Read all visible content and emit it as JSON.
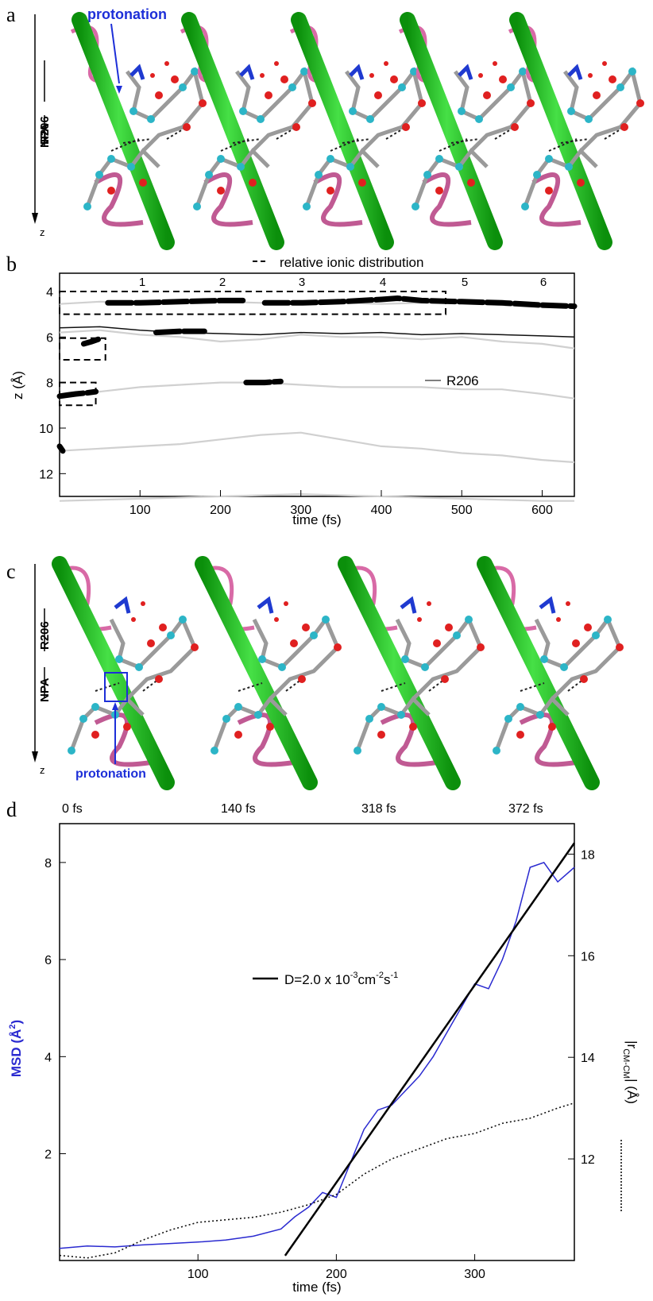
{
  "panel_a": {
    "letter": "a",
    "annotation": "protonation",
    "labels": [
      "R206",
      "NPA"
    ],
    "axis": "z",
    "frame_count": 5
  },
  "panel_b": {
    "letter": "b",
    "legend_dashed": "relative ionic distribution",
    "legend_solid": "R206",
    "chart_data": {
      "type": "line",
      "xlabel": "time (fs)",
      "ylabel": "z (Å)",
      "xlim": [
        0,
        640
      ],
      "ylim": [
        13,
        3.2
      ],
      "xticks": [
        100,
        200,
        300,
        400,
        500,
        600
      ],
      "yticks": [
        4,
        6,
        8,
        10,
        12
      ],
      "top_markers": [
        "1",
        "2",
        "3",
        "4",
        "5",
        "6"
      ],
      "top_marker_x": [
        57,
        123,
        264,
        293,
        435,
        611
      ],
      "series": [
        {
          "name": "R206",
          "style": "black",
          "x": [
            0,
            50,
            100,
            150,
            200,
            250,
            300,
            350,
            400,
            450,
            500,
            550,
            600,
            640
          ],
          "y": [
            5.6,
            5.55,
            5.7,
            5.8,
            5.85,
            5.9,
            5.8,
            5.85,
            5.8,
            5.9,
            5.85,
            5.9,
            5.95,
            6.0
          ]
        },
        {
          "style": "gray",
          "x": [
            0,
            50,
            100,
            150,
            200,
            250,
            300,
            350,
            400,
            450,
            500,
            550,
            600,
            640
          ],
          "y": [
            4.55,
            4.45,
            4.5,
            4.5,
            4.45,
            4.5,
            4.55,
            4.5,
            4.55,
            4.5,
            4.5,
            4.6,
            4.7,
            4.7
          ]
        },
        {
          "style": "gray",
          "x": [
            0,
            50,
            100,
            150,
            200,
            250,
            300,
            350,
            400,
            450,
            500,
            550,
            600,
            640
          ],
          "y": [
            5.8,
            5.7,
            5.9,
            6.0,
            6.2,
            6.1,
            5.9,
            6.0,
            6.0,
            6.1,
            6.0,
            6.2,
            6.3,
            6.5
          ]
        },
        {
          "style": "gray",
          "x": [
            0,
            50,
            100,
            150,
            200,
            250,
            300,
            350,
            400,
            450,
            500,
            550,
            600,
            640
          ],
          "y": [
            8.6,
            8.4,
            8.2,
            8.1,
            8.0,
            8.0,
            8.1,
            8.2,
            8.2,
            8.2,
            8.3,
            8.3,
            8.5,
            8.7
          ]
        },
        {
          "style": "gray",
          "x": [
            0,
            50,
            100,
            150,
            200,
            250,
            300,
            350,
            400,
            450,
            500,
            550,
            600,
            640
          ],
          "y": [
            11.0,
            10.9,
            10.8,
            10.7,
            10.5,
            10.3,
            10.2,
            10.5,
            10.8,
            10.9,
            11.1,
            11.2,
            11.4,
            11.5
          ]
        },
        {
          "style": "gray",
          "x": [
            0,
            100,
            200,
            300,
            400,
            500,
            600,
            640
          ],
          "y": [
            13.2,
            13.1,
            13.0,
            12.9,
            13.0,
            13.1,
            13.2,
            13.2
          ]
        }
      ],
      "thick_segments": [
        {
          "x": [
            0,
            10,
            20,
            35,
            45
          ],
          "y": [
            8.6,
            8.55,
            8.5,
            8.45,
            8.4
          ]
        },
        {
          "x": [
            30,
            40,
            48
          ],
          "y": [
            6.3,
            6.2,
            6.1
          ]
        },
        {
          "x": [
            0,
            4
          ],
          "y": [
            10.8,
            11.0
          ]
        },
        {
          "x": [
            60,
            100,
            150,
            200,
            230
          ],
          "y": [
            4.5,
            4.5,
            4.45,
            4.4,
            4.4
          ]
        },
        {
          "x": [
            255,
            300,
            350,
            400,
            420,
            450,
            500,
            550,
            600,
            640
          ],
          "y": [
            4.5,
            4.5,
            4.45,
            4.35,
            4.3,
            4.4,
            4.45,
            4.5,
            4.6,
            4.65
          ]
        },
        {
          "x": [
            120,
            150,
            180
          ],
          "y": [
            5.8,
            5.75,
            5.75
          ]
        },
        {
          "x": [
            232,
            255,
            275
          ],
          "y": [
            8.0,
            8.0,
            7.95
          ]
        }
      ],
      "dashed_boxes": [
        {
          "x": [
            0,
            480
          ],
          "y": [
            4.0,
            5.0
          ]
        },
        {
          "x": [
            0,
            57
          ],
          "y": [
            6.05,
            7.0
          ]
        },
        {
          "x": [
            0,
            45
          ],
          "y": [
            8.0,
            9.0
          ]
        }
      ]
    }
  },
  "panel_c": {
    "letter": "c",
    "annotation": "protonation",
    "labels": [
      "R206",
      "NPA"
    ],
    "axis": "z",
    "frame_count": 4
  },
  "panel_d": {
    "letter": "d",
    "frame_times": [
      "0 fs",
      "140 fs",
      "318 fs",
      "372 fs"
    ],
    "legend_fit": "D=2.0 x 10",
    "legend_fit_exp1": "-3",
    "legend_fit_unit": "cm",
    "legend_fit_exp2": "-2",
    "legend_fit_tail": "s",
    "legend_fit_exp3": "-1",
    "y_left_label": "MSD (Å",
    "y_left_label_sup": "2",
    "y_left_label_end": ")",
    "y_right_label_prefix": "|r",
    "y_right_label_sub": "CM-CM",
    "y_right_label_suffix": "| (Å)",
    "chart_data": {
      "type": "line",
      "xlabel": "time (fs)",
      "xlim": [
        0,
        372
      ],
      "xticks": [
        100,
        200,
        300
      ],
      "ylim_left": [
        -0.2,
        8.8
      ],
      "yticks_left": [
        2,
        4,
        6,
        8
      ],
      "ylim_right": [
        10.0,
        18.6
      ],
      "yticks_right": [
        12,
        14,
        16,
        18
      ],
      "series": [
        {
          "name": "MSD",
          "axis": "left",
          "color": "#2a2ad0",
          "x": [
            0,
            20,
            40,
            60,
            80,
            100,
            120,
            140,
            160,
            170,
            180,
            190,
            200,
            210,
            220,
            230,
            240,
            250,
            260,
            270,
            280,
            290,
            300,
            310,
            320,
            330,
            340,
            350,
            360,
            372
          ],
          "y": [
            0.05,
            0.1,
            0.08,
            0.12,
            0.15,
            0.18,
            0.22,
            0.3,
            0.45,
            0.7,
            0.9,
            1.2,
            1.1,
            1.8,
            2.5,
            2.9,
            3.0,
            3.3,
            3.6,
            4.0,
            4.5,
            5.0,
            5.5,
            5.4,
            6.0,
            6.8,
            7.9,
            8.0,
            7.6,
            7.9
          ]
        },
        {
          "name": "|rCM-CM|",
          "axis": "right",
          "style": "dotted",
          "x": [
            0,
            20,
            40,
            60,
            80,
            100,
            120,
            140,
            160,
            180,
            200,
            220,
            240,
            260,
            280,
            300,
            320,
            340,
            360,
            372
          ],
          "y": [
            10.1,
            10.05,
            10.15,
            10.4,
            10.6,
            10.75,
            10.8,
            10.85,
            10.95,
            11.1,
            11.3,
            11.7,
            12.0,
            12.2,
            12.4,
            12.5,
            12.7,
            12.8,
            13.0,
            13.1
          ]
        },
        {
          "name": "fit",
          "axis": "left",
          "style": "black",
          "x": [
            163,
            372
          ],
          "y": [
            -0.1,
            8.4
          ]
        }
      ]
    }
  }
}
